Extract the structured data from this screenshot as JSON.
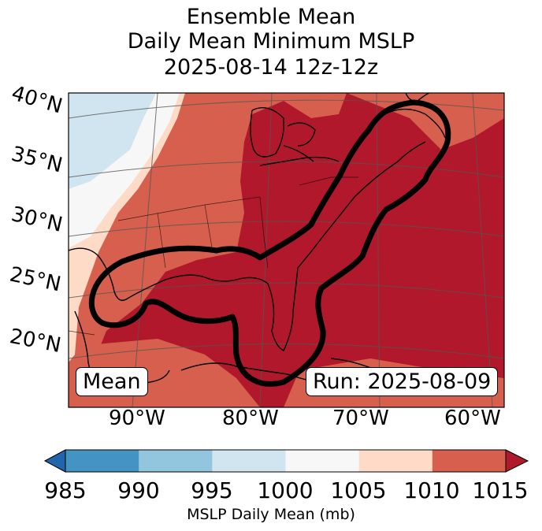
{
  "title": {
    "line1": "Ensemble Mean",
    "line2": "Daily Mean Minimum MSLP",
    "line3": "2025-08-14 12z-12z"
  },
  "map": {
    "region": "US East Coast / Gulf of Mexico / Western Atlantic",
    "lat_labels": [
      "40°N",
      "35°N",
      "30°N",
      "25°N",
      "20°N"
    ],
    "lon_labels": [
      "90°W",
      "80°W",
      "70°W",
      "60°W"
    ],
    "mean_box": "Mean",
    "run_box": "Run: 2025-08-09"
  },
  "colorbar": {
    "label": "MSLP Daily Mean (mb)",
    "ticks": [
      "985",
      "990",
      "995",
      "1000",
      "1005",
      "1010",
      "1015"
    ],
    "colors": [
      "#4393c3",
      "#92c5de",
      "#d1e5f0",
      "#f7f7f7",
      "#fddbc7",
      "#d6604d",
      "#b2182b"
    ],
    "under_color": "#2166ac",
    "over_color": "#b2182b"
  },
  "colors": {
    "deep_red": "#b2182b",
    "red": "#d6604d",
    "peach": "#fddbc7",
    "white": "#f7f7f7",
    "light_blue": "#d1e5f0",
    "contour": "#000000"
  }
}
